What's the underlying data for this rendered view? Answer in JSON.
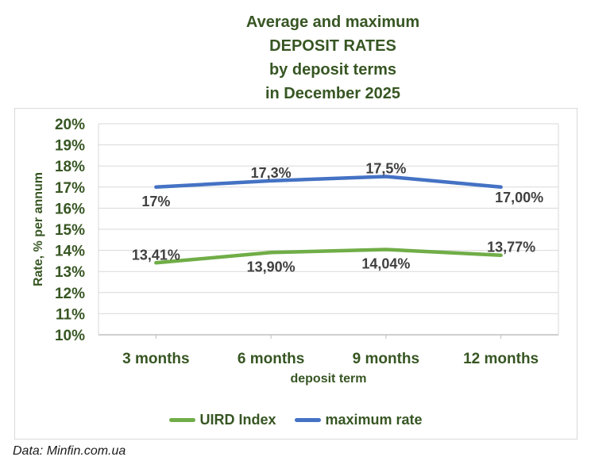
{
  "title": {
    "lines": [
      "Average and maximum",
      "DEPOSIT RATES",
      "by deposit terms",
      "in December 2025"
    ]
  },
  "footer": {
    "text": "Data: Minfin.com.ua"
  },
  "colors": {
    "title_green": "#375623",
    "gridline": "#D9D9D9",
    "axis_line": "#BFBFBF",
    "plot_border": "#D9D9D9",
    "data_label": "#404040",
    "uird_green": "#70AD47",
    "max_blue": "#4472C4"
  },
  "chart_data": {
    "type": "line",
    "title": "Average and maximum DEPOSIT RATES by deposit terms in December 2025",
    "categories": [
      "3 months",
      "6 months",
      "9 months",
      "12 months"
    ],
    "xlabel": "deposit term",
    "ylabel": "Rate, % per annum",
    "ylim": [
      10,
      20
    ],
    "yticks": [
      "20%",
      "19%",
      "18%",
      "17%",
      "16%",
      "15%",
      "14%",
      "13%",
      "12%",
      "11%",
      "10%"
    ],
    "grid": "horizontal",
    "legend_position": "bottom",
    "series": [
      {
        "name": "UIRD Index",
        "color": "#70AD47",
        "values": [
          13.41,
          13.9,
          14.04,
          13.77
        ],
        "point_labels": [
          "13,41%",
          "13,90%",
          "14,04%",
          "13,77%"
        ],
        "label_positions": [
          "above",
          "below",
          "below",
          "above-right"
        ]
      },
      {
        "name": "maximum rate",
        "color": "#4472C4",
        "values": [
          17,
          17.3,
          17.5,
          17
        ],
        "point_labels": [
          "17%",
          "17,3%",
          "17,5%",
          "17,00%"
        ],
        "label_positions": [
          "below",
          "above",
          "above",
          "below-right"
        ]
      }
    ]
  }
}
